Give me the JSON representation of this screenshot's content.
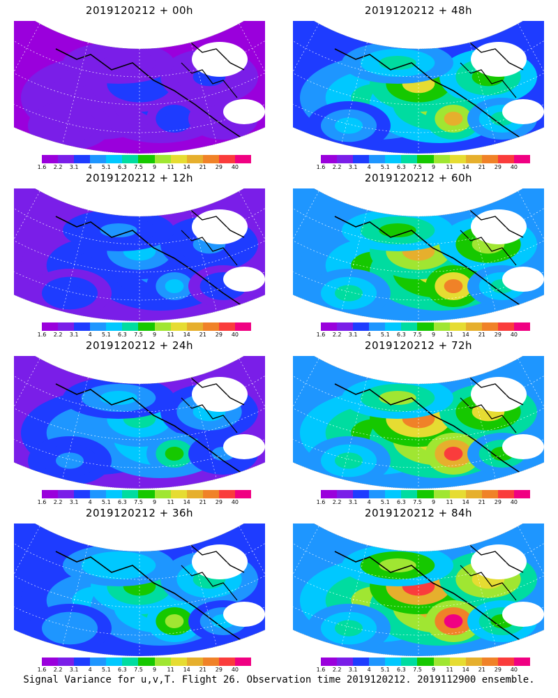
{
  "panels": [
    {
      "title": "2019120212 + 00h",
      "level": 0.15
    },
    {
      "title": "2019120212 + 48h",
      "level": 0.62
    },
    {
      "title": "2019120212 + 12h",
      "level": 0.28
    },
    {
      "title": "2019120212 + 60h",
      "level": 0.7
    },
    {
      "title": "2019120212 + 24h",
      "level": 0.4
    },
    {
      "title": "2019120212 + 72h",
      "level": 0.78
    },
    {
      "title": "2019120212 + 36h",
      "level": 0.5
    },
    {
      "title": "2019120212 + 84h",
      "level": 0.84
    }
  ],
  "colorbar": {
    "labels": [
      "1.6",
      "2.2",
      "3.1",
      "4",
      "5.1",
      "6.3",
      "7.5",
      "9",
      "11",
      "14",
      "21",
      "29",
      "40"
    ],
    "colors": [
      "#9a00dc",
      "#7a1ee8",
      "#1e3cff",
      "#1e96ff",
      "#00c8ff",
      "#00dca0",
      "#16c800",
      "#a0e632",
      "#e6dc32",
      "#e6af2d",
      "#f08228",
      "#fa3c3c",
      "#f00082"
    ]
  },
  "footer": "Signal Variance for u,v,T. Flight 26. Observation time 2019120212. 2019112900 ensemble."
}
